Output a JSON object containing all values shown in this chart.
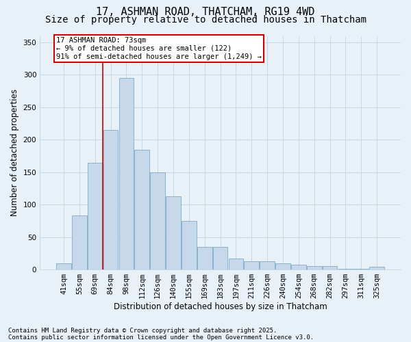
{
  "title_line1": "17, ASHMAN ROAD, THATCHAM, RG19 4WD",
  "title_line2": "Size of property relative to detached houses in Thatcham",
  "xlabel": "Distribution of detached houses by size in Thatcham",
  "ylabel": "Number of detached properties",
  "categories": [
    "41sqm",
    "55sqm",
    "69sqm",
    "84sqm",
    "98sqm",
    "112sqm",
    "126sqm",
    "140sqm",
    "155sqm",
    "169sqm",
    "183sqm",
    "197sqm",
    "211sqm",
    "226sqm",
    "240sqm",
    "254sqm",
    "268sqm",
    "282sqm",
    "297sqm",
    "311sqm",
    "325sqm"
  ],
  "values": [
    10,
    83,
    165,
    215,
    295,
    185,
    150,
    113,
    75,
    35,
    35,
    17,
    13,
    13,
    10,
    7,
    5,
    5,
    1,
    1,
    4
  ],
  "bar_color": "#c8d8eb",
  "bar_edge_color": "#7aaac8",
  "grid_color": "#c5d8e8",
  "bg_color": "#e8f0f8",
  "red_line_index": 2,
  "annotation_title": "17 ASHMAN ROAD: 73sqm",
  "annotation_line2": "← 9% of detached houses are smaller (122)",
  "annotation_line3": "91% of semi-detached houses are larger (1,249) →",
  "annotation_box_color": "#cc0000",
  "ylim": [
    0,
    360
  ],
  "yticks": [
    0,
    50,
    100,
    150,
    200,
    250,
    300,
    350
  ],
  "footnote1": "Contains HM Land Registry data © Crown copyright and database right 2025.",
  "footnote2": "Contains public sector information licensed under the Open Government Licence v3.0.",
  "title_fontsize": 11,
  "subtitle_fontsize": 10,
  "axis_label_fontsize": 8.5,
  "tick_fontsize": 7.5,
  "annotation_fontsize": 7.5,
  "footnote_fontsize": 6.5
}
